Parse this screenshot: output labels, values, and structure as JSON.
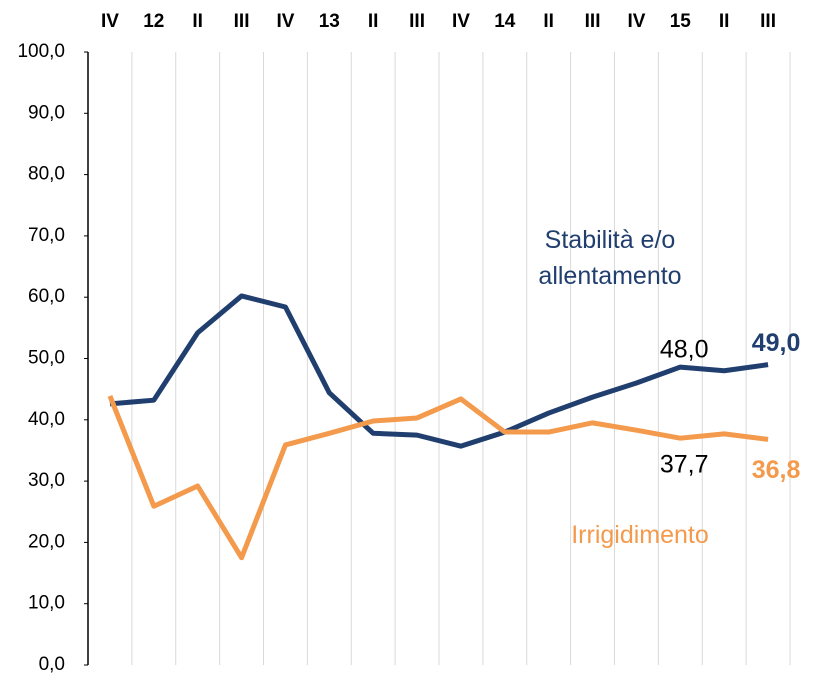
{
  "chart_data": {
    "type": "line",
    "categories": [
      "IV",
      "12",
      "II",
      "III",
      "IV",
      "13",
      "II",
      "III",
      "IV",
      "14",
      "II",
      "III",
      "IV",
      "15",
      "II",
      "III"
    ],
    "series": [
      {
        "name": "Stabilità e/o allentamento",
        "color": "#203f6f",
        "values": [
          42.6,
          43.2,
          54.2,
          60.2,
          58.4,
          44.4,
          37.8,
          37.5,
          35.7,
          38.0,
          41.1,
          43.7,
          46.0,
          48.6,
          48.0,
          49.0
        ],
        "value_labels": [
          null,
          null,
          null,
          null,
          null,
          null,
          null,
          null,
          null,
          null,
          null,
          null,
          null,
          null,
          "48,0",
          "49,0"
        ]
      },
      {
        "name": "Irrigidimento",
        "color": "#f39a4c",
        "values": [
          43.9,
          25.9,
          29.2,
          17.5,
          35.9,
          37.8,
          39.8,
          40.3,
          43.4,
          38.0,
          38.0,
          39.5,
          38.3,
          37.0,
          37.7,
          36.8
        ],
        "value_labels": [
          null,
          null,
          null,
          null,
          null,
          null,
          null,
          null,
          null,
          null,
          null,
          null,
          null,
          null,
          "37,7",
          "36,8"
        ]
      }
    ],
    "ylim": [
      0,
      100
    ],
    "yticks": [
      {
        "value": 0,
        "label": "0,0"
      },
      {
        "value": 10,
        "label": "10,0"
      },
      {
        "value": 20,
        "label": "20,0"
      },
      {
        "value": 30,
        "label": "30,0"
      },
      {
        "value": 40,
        "label": "40,0"
      },
      {
        "value": 50,
        "label": "50,0"
      },
      {
        "value": 60,
        "label": "60,0"
      },
      {
        "value": 70,
        "label": "70,0"
      },
      {
        "value": 80,
        "label": "80,0"
      },
      {
        "value": 90,
        "label": "90,0"
      },
      {
        "value": 100,
        "label": "100,0"
      }
    ]
  }
}
